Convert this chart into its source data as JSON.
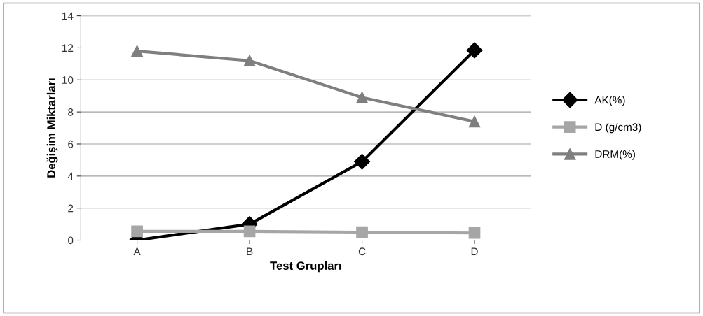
{
  "chart_data": {
    "type": "line",
    "xlabel": "Test Grupları",
    "ylabel": "Değişim Miktarları",
    "categories": [
      "A",
      "B",
      "C",
      "D"
    ],
    "series": [
      {
        "name": "AK(%)",
        "color": "#000000",
        "marker": "diamond",
        "values": [
          0,
          1,
          4.9,
          11.85
        ]
      },
      {
        "name": "D (g/cm3)",
        "color": "#a6a6a6",
        "marker": "square",
        "values": [
          0.55,
          0.55,
          0.5,
          0.45
        ]
      },
      {
        "name": "DRM(%)",
        "color": "#7f7f7f",
        "marker": "triangle",
        "values": [
          11.8,
          11.2,
          8.9,
          7.4
        ]
      }
    ],
    "ylim": [
      0,
      14
    ],
    "yticks": [
      0,
      2,
      4,
      6,
      8,
      10,
      12,
      14
    ],
    "grid": "y",
    "legend": "right"
  }
}
